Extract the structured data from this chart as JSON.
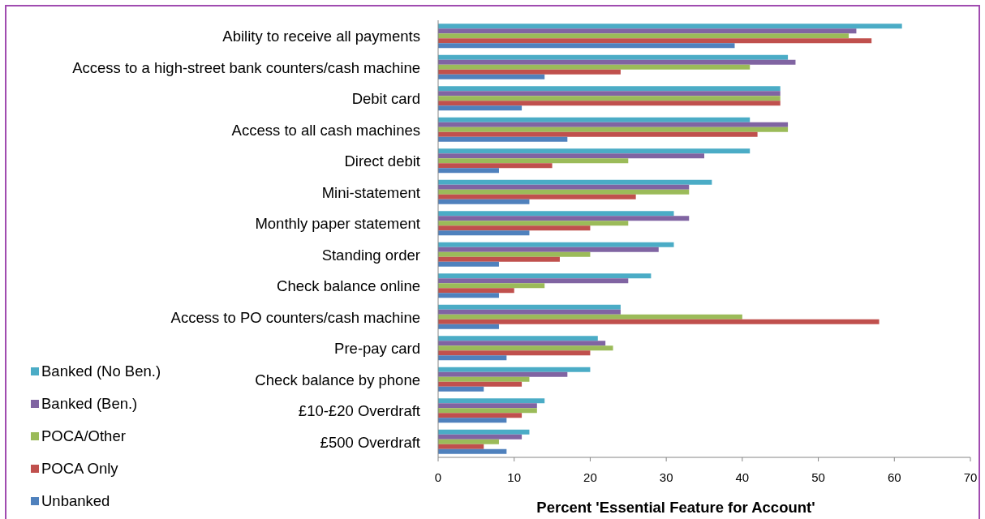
{
  "chart_data": {
    "type": "bar",
    "orientation": "horizontal",
    "xlabel": "Percent 'Essential Feature for Account'",
    "categories": [
      "Ability to receive all payments",
      "Access to a high-street bank counters/cash machine",
      "Debit card",
      "Access to all cash machines",
      "Direct debit",
      "Mini-statement",
      "Monthly paper statement",
      "Standing order",
      "Check balance online",
      "Access to PO counters/cash machine",
      "Pre-pay card",
      "Check balance by phone",
      "£10-£20 Overdraft",
      "£500 Overdraft"
    ],
    "series": [
      {
        "name": "Banked (No Ben.)",
        "color": "#4bacc6",
        "values": [
          61,
          46,
          45,
          41,
          41,
          36,
          31,
          31,
          28,
          24,
          21,
          20,
          14,
          12
        ]
      },
      {
        "name": "Banked (Ben.)",
        "color": "#8064a2",
        "values": [
          55,
          47,
          45,
          46,
          35,
          33,
          33,
          29,
          25,
          24,
          22,
          17,
          13,
          11
        ]
      },
      {
        "name": "POCA/Other",
        "color": "#9bbb59",
        "values": [
          54,
          41,
          45,
          46,
          25,
          33,
          25,
          20,
          14,
          40,
          23,
          12,
          13,
          8
        ]
      },
      {
        "name": "POCA Only",
        "color": "#c0504d",
        "values": [
          57,
          24,
          45,
          42,
          15,
          26,
          20,
          16,
          10,
          58,
          20,
          11,
          11,
          6
        ]
      },
      {
        "name": "Unbanked",
        "color": "#4f81bd",
        "values": [
          39,
          14,
          11,
          17,
          8,
          12,
          12,
          8,
          8,
          8,
          9,
          6,
          9,
          9
        ]
      }
    ],
    "xlim": [
      0,
      70
    ],
    "xticks": [
      0,
      10,
      20,
      30,
      40,
      50,
      60,
      70
    ],
    "legend": "bottom left"
  }
}
